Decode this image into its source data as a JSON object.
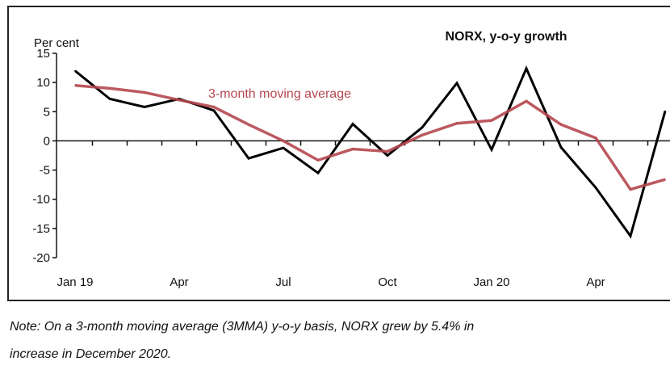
{
  "chart_data": {
    "type": "line",
    "title": "NORX, y-o-y growth",
    "ylabel": "Per cent",
    "xlabel": "",
    "ylim": [
      -20,
      15
    ],
    "yticks": [
      15,
      10,
      5,
      0,
      -5,
      -10,
      -15,
      -20
    ],
    "x": [
      "Jan 19",
      "Feb 19",
      "Mar 19",
      "Apr 19",
      "May 19",
      "Jun 19",
      "Jul 19",
      "Aug 19",
      "Sep 19",
      "Oct 19",
      "Nov 19",
      "Dec 19",
      "Jan 20",
      "Feb 20",
      "Mar 20",
      "Apr 20",
      "May 20",
      "Jun 20"
    ],
    "xtick_labels": [
      {
        "index": 0,
        "label": "Jan 19"
      },
      {
        "index": 3,
        "label": "Apr"
      },
      {
        "index": 6,
        "label": "Jul"
      },
      {
        "index": 9,
        "label": "Oct"
      },
      {
        "index": 12,
        "label": "Jan 20"
      },
      {
        "index": 15,
        "label": "Apr"
      }
    ],
    "series": [
      {
        "name": "NORX y-o-y growth",
        "color": "#000000",
        "values": [
          12.0,
          7.2,
          5.8,
          7.2,
          5.2,
          -3.0,
          -1.2,
          -5.5,
          2.9,
          -2.5,
          2.3,
          9.9,
          -1.5,
          12.4,
          -1.1,
          -8.0,
          -16.3,
          5.1
        ]
      },
      {
        "name": "3-month moving average",
        "color": "#b5474f",
        "values": [
          9.5,
          9.0,
          8.3,
          7.0,
          5.8,
          2.8,
          0.0,
          -3.3,
          -1.4,
          -1.8,
          1.0,
          3.0,
          3.5,
          6.8,
          2.8,
          0.5,
          -8.3,
          -6.6
        ]
      }
    ],
    "annotations": [
      {
        "text": "3-month moving average",
        "color": "#b5474f"
      }
    ],
    "grid": false
  },
  "note": {
    "line1": "Note: On a 3-month moving average (3MMA) y-o-y basis, NORX grew by 5.4% in",
    "line2": "increase in December 2020."
  }
}
